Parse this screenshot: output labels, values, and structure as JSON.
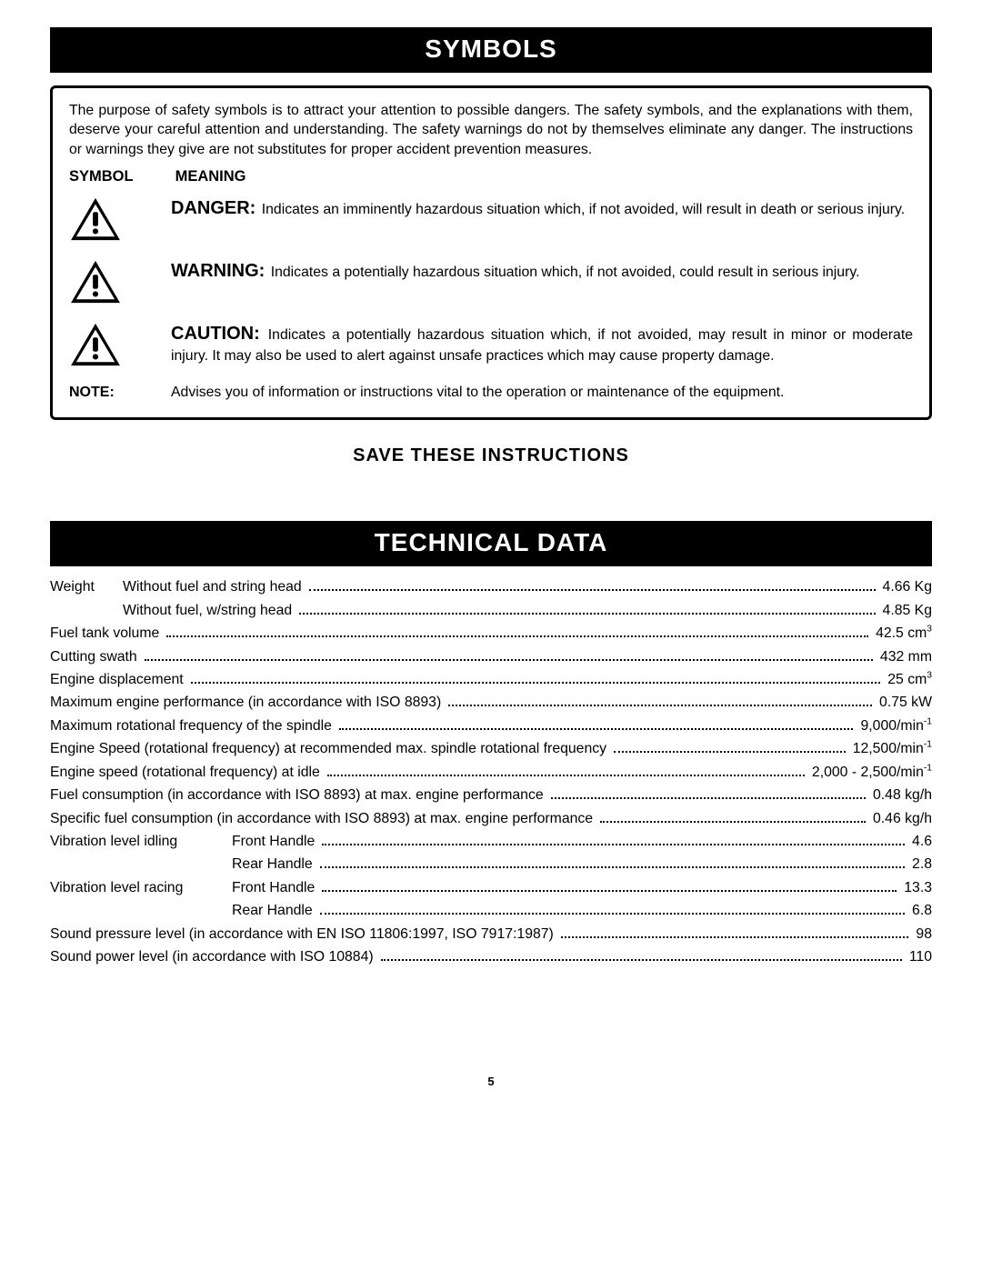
{
  "headers": {
    "symbols": "SYMBOLS",
    "technical_data": "TECHNICAL DATA",
    "save": "SAVE  THESE  INSTRUCTIONS"
  },
  "symbols_box": {
    "intro": "The purpose of safety symbols is to attract your attention to possible dangers. The safety symbols, and the explanations with them, deserve your careful attention and understanding. The safety warnings do not by themselves eliminate any danger. The instructions or warnings they give are not substitutes for proper accident prevention measures.",
    "col_symbol": "SYMBOL",
    "col_meaning": "MEANING",
    "defs": [
      {
        "lead": "DANGER:",
        "text": " Indicates an imminently hazardous situation which, if not avoided, will result in death or serious injury."
      },
      {
        "lead": "WARNING:",
        "text": "  Indicates a potentially hazardous situation which, if not avoided, could result in serious injury."
      },
      {
        "lead": "CAUTION:",
        "text": " Indicates a potentially hazardous situation which, if not avoided, may result in minor or moderate injury. It may also be used to alert against unsafe practices which may cause property damage."
      }
    ],
    "note_label": "NOTE:",
    "note_text": "Advises you of information or instructions vital to the operation or maintenance of the equipment."
  },
  "tech_specs": [
    {
      "pre": "Weight",
      "pre_width": 80,
      "label": "Without fuel and string head",
      "value": "4.66  Kg"
    },
    {
      "pre": "",
      "pre_width": 80,
      "label": "Without fuel, w/string head",
      "value": "4.85  Kg"
    },
    {
      "label": "Fuel tank volume",
      "value": "42.5 cm",
      "sup": "3"
    },
    {
      "label": "Cutting swath",
      "value": "432 mm"
    },
    {
      "label": "Engine displacement",
      "value": "25 cm",
      "sup": "3"
    },
    {
      "label": "Maximum engine performance (in accordance with ISO 8893)",
      "value": "0.75 kW"
    },
    {
      "label": "Maximum rotational frequency of the spindle",
      "value": "9,000/min",
      "sup": "-1"
    },
    {
      "label": "Engine Speed (rotational frequency) at recommended max. spindle rotational frequency",
      "value": "12,500/min",
      "sup": "-1"
    },
    {
      "label": "Engine speed (rotational frequency) at idle",
      "value": "2,000 - 2,500/min",
      "sup": "-1"
    },
    {
      "label": "Fuel consumption (in accordance with ISO 8893) at max. engine performance",
      "value": "0.48 kg/h"
    },
    {
      "label": "Specific fuel consumption (in accordance with ISO 8893) at max. engine performance",
      "value": "0.46 kg/h"
    },
    {
      "pre": "Vibration level idling",
      "pre_width": 200,
      "label": "Front Handle",
      "value": "4.6"
    },
    {
      "pre": "",
      "pre_width": 200,
      "label": "Rear Handle",
      "value": "2.8"
    },
    {
      "pre": "Vibration level racing",
      "pre_width": 200,
      "label": "Front Handle",
      "value": "13.3"
    },
    {
      "pre": "",
      "pre_width": 200,
      "label": "Rear Handle",
      "value": "6.8"
    },
    {
      "label": "Sound pressure level (in accordance with EN ISO 11806:1997, ISO 7917:1987)",
      "value": "98"
    },
    {
      "label": "Sound power level (in accordance with ISO 10884)",
      "value": "110"
    }
  ],
  "page": "5"
}
